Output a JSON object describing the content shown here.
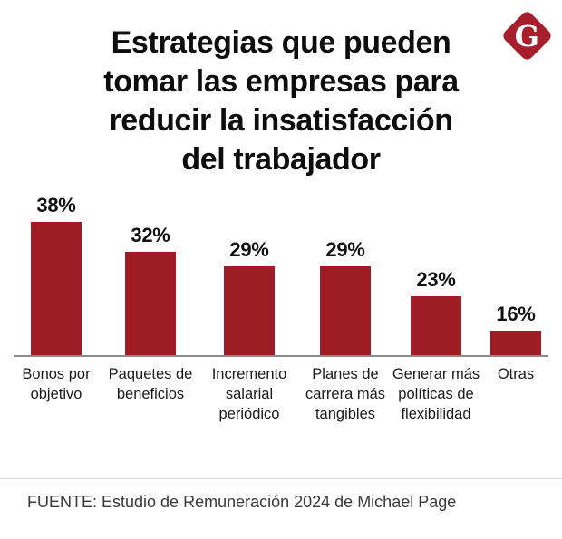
{
  "title": {
    "text": "Estrategias que pueden\ntomar las empresas para\nreducir la insatisfacción\ndel trabajador",
    "color": "#0d0d0d"
  },
  "logo": {
    "letter": "G",
    "bg_color": "#A71E2C",
    "letter_color": "#ffffff"
  },
  "chart_data": {
    "type": "bar",
    "title": "Estrategias que pueden tomar las empresas para reducir la insatisfacción del trabajador",
    "categories": [
      "Bonos por\nobjetivo",
      "Paquetes de\nbeneficios",
      "Incremento\nsalarial\nperiódico",
      "Planes de\ncarrera más\ntangibles",
      "Generar más\npolíticas de\nflexibilidad",
      "Otras"
    ],
    "values": [
      38,
      32,
      29,
      29,
      23,
      16
    ],
    "value_labels": [
      "38%",
      "32%",
      "29%",
      "29%",
      "23%",
      "16%"
    ],
    "xlabel": "",
    "ylabel": "",
    "ylim": [
      11,
      40
    ],
    "grid": false,
    "legend": false,
    "bar_color": "#9E1C24",
    "axis_line_color": "#8a8a8a"
  },
  "footer": {
    "source": "FUENTE: Estudio de Remuneración 2024 de Michael Page",
    "divider_color": "#dcdcdc",
    "text_color": "#3a3a3a"
  }
}
